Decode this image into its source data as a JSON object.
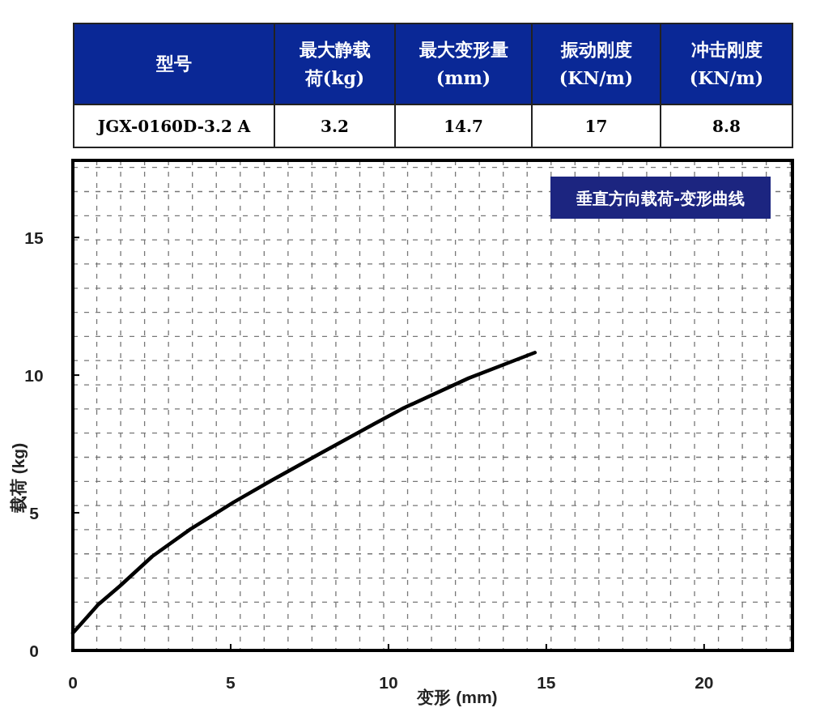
{
  "chart_data": {
    "type": "line",
    "title": "垂直方向载荷-变形曲线",
    "xlabel": "变形 (mm)",
    "ylabel": "载荷 (kg)",
    "annotations": [
      "型号",
      "最大静载荷(kg)",
      "最大变形量(mm)",
      "振动刚度(KN/m)",
      "冲击刚度(KN/m)",
      "JGX-0160D-3.2 A",
      "3.2",
      "14.7",
      "17",
      "8.8"
    ],
    "x": [
      0,
      0.8,
      1.49,
      2.52,
      3.72,
      5.09,
      6.29,
      7.83,
      9.55,
      10.49,
      12.54,
      14.64
    ],
    "series": [
      {
        "color": "#000000",
        "values": [
          0.63,
          1.66,
          2.34,
          3.42,
          4.4,
          5.38,
          6.17,
          7.15,
          8.23,
          8.81,
          9.89,
          10.82
        ]
      }
    ],
    "xlim": [
      0,
      22.8
    ],
    "ylim": [
      0,
      17.8
    ],
    "xticks": [
      0,
      5,
      10,
      15,
      20
    ],
    "yticks": [
      0,
      5,
      10,
      15
    ],
    "grid": true
  }
}
